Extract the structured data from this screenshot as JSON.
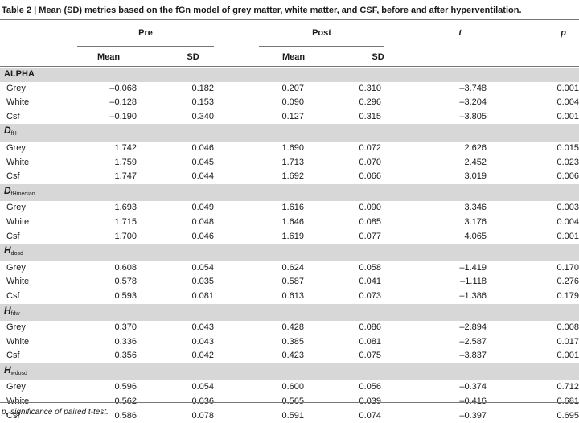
{
  "caption": "Table 2 | Mean (SD) metrics based on the fGn model of grey matter, white matter, and CSF, before and after hyperventilation.",
  "header": {
    "pre": "Pre",
    "post": "Post",
    "t": "t",
    "p": "p",
    "mean": "Mean",
    "sd": "SD"
  },
  "sections": [
    {
      "symbol": "ALPHA",
      "subscript": "",
      "rows": [
        {
          "label": "Grey",
          "pre_mean": "–0.068",
          "pre_sd": "0.182",
          "post_mean": "0.207",
          "post_sd": "0.310",
          "t": "–3.748",
          "p": "0.001"
        },
        {
          "label": "White",
          "pre_mean": "–0.128",
          "pre_sd": "0.153",
          "post_mean": "0.090",
          "post_sd": "0.296",
          "t": "–3.204",
          "p": "0.004"
        },
        {
          "label": "Csf",
          "pre_mean": "–0.190",
          "pre_sd": "0.340",
          "post_mean": "0.127",
          "post_sd": "0.315",
          "t": "–3.805",
          "p": "0.001"
        }
      ]
    },
    {
      "symbol": "D",
      "subscript": "fH",
      "rows": [
        {
          "label": "Grey",
          "pre_mean": "1.742",
          "pre_sd": "0.046",
          "post_mean": "1.690",
          "post_sd": "0.072",
          "t": "2.626",
          "p": "0.015"
        },
        {
          "label": "White",
          "pre_mean": "1.759",
          "pre_sd": "0.045",
          "post_mean": "1.713",
          "post_sd": "0.070",
          "t": "2.452",
          "p": "0.023"
        },
        {
          "label": "Csf",
          "pre_mean": "1.747",
          "pre_sd": "0.044",
          "post_mean": "1.692",
          "post_sd": "0.066",
          "t": "3.019",
          "p": "0.006"
        }
      ]
    },
    {
      "symbol": "D",
      "subscript": "fHmedian",
      "rows": [
        {
          "label": "Grey",
          "pre_mean": "1.693",
          "pre_sd": "0.049",
          "post_mean": "1.616",
          "post_sd": "0.090",
          "t": "3.346",
          "p": "0.003"
        },
        {
          "label": "White",
          "pre_mean": "1.715",
          "pre_sd": "0.048",
          "post_mean": "1.646",
          "post_sd": "0.085",
          "t": "3.176",
          "p": "0.004"
        },
        {
          "label": "Csf",
          "pre_mean": "1.700",
          "pre_sd": "0.046",
          "post_mean": "1.619",
          "post_sd": "0.077",
          "t": "4.065",
          "p": "0.001"
        }
      ]
    },
    {
      "symbol": "H",
      "subscript": "dosd",
      "rows": [
        {
          "label": "Grey",
          "pre_mean": "0.608",
          "pre_sd": "0.054",
          "post_mean": "0.624",
          "post_sd": "0.058",
          "t": "–1.419",
          "p": "0.170"
        },
        {
          "label": "White",
          "pre_mean": "0.578",
          "pre_sd": "0.035",
          "post_mean": "0.587",
          "post_sd": "0.041",
          "t": "–1.118",
          "p": "0.276"
        },
        {
          "label": "Csf",
          "pre_mean": "0.593",
          "pre_sd": "0.081",
          "post_mean": "0.613",
          "post_sd": "0.073",
          "t": "–1.386",
          "p": "0.179"
        }
      ]
    },
    {
      "symbol": "H",
      "subscript": "fdw",
      "rows": [
        {
          "label": "Grey",
          "pre_mean": "0.370",
          "pre_sd": "0.043",
          "post_mean": "0.428",
          "post_sd": "0.086",
          "t": "–2.894",
          "p": "0.008"
        },
        {
          "label": "White",
          "pre_mean": "0.336",
          "pre_sd": "0.043",
          "post_mean": "0.385",
          "post_sd": "0.081",
          "t": "–2.587",
          "p": "0.017"
        },
        {
          "label": "Csf",
          "pre_mean": "0.356",
          "pre_sd": "0.042",
          "post_mean": "0.423",
          "post_sd": "0.075",
          "t": "–3.837",
          "p": "0.001"
        }
      ]
    },
    {
      "symbol": "H",
      "subscript": "wdosd",
      "rows": [
        {
          "label": "Grey",
          "pre_mean": "0.596",
          "pre_sd": "0.054",
          "post_mean": "0.600",
          "post_sd": "0.056",
          "t": "–0.374",
          "p": "0.712"
        },
        {
          "label": "White",
          "pre_mean": "0.562",
          "pre_sd": "0.036",
          "post_mean": "0.565",
          "post_sd": "0.039",
          "t": "–0.416",
          "p": "0.681"
        },
        {
          "label": "Csf",
          "pre_mean": "0.586",
          "pre_sd": "0.078",
          "post_mean": "0.591",
          "post_sd": "0.074",
          "t": "–0.397",
          "p": "0.695"
        }
      ]
    }
  ],
  "footnote": "p, significance of paired t-test."
}
